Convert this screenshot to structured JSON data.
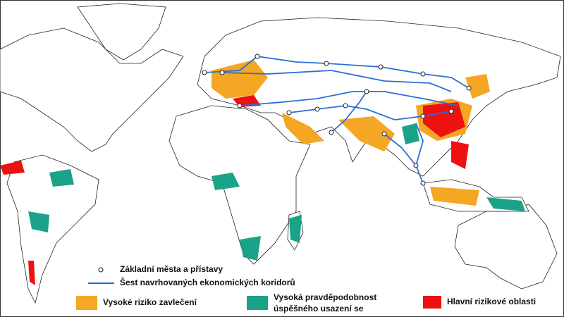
{
  "legend": {
    "cities": "Základní města a přístavy",
    "corridors": "Šest navrhovaných ekonomických koridorů",
    "high_invasion": "Vysoké riziko zavlečení",
    "establishment": [
      "Vysoká pravděpodobnost",
      "úspěšného usazení se"
    ],
    "main_risk": "Hlavní rizikové oblasti"
  }
}
